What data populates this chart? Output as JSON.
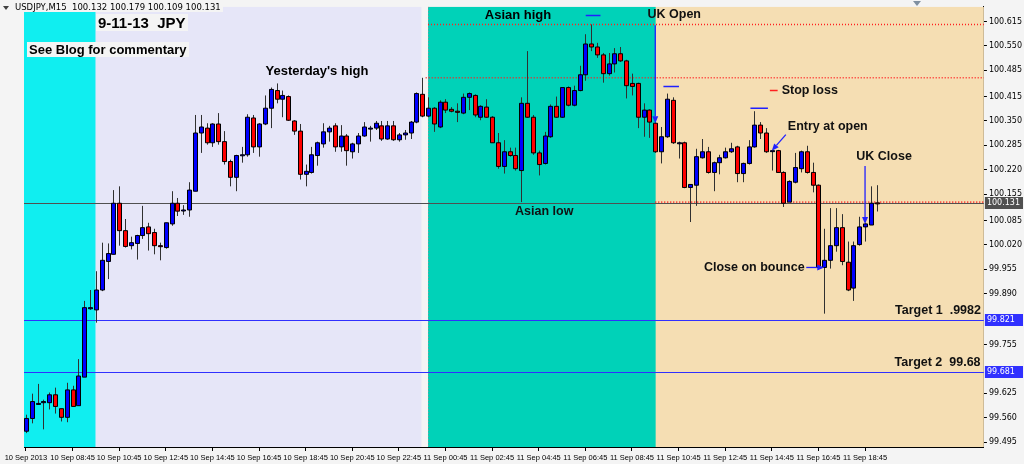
{
  "chart_data": {
    "type": "candlestick",
    "title": "9-11-13  JPY",
    "subtitle": "USDJPY,M15  100.132 100.179 100.109 100.131",
    "x": [
      "2013-09-10T06:45",
      "2013-09-10T07:00",
      "2013-09-10T07:15",
      "2013-09-10T07:30",
      "2013-09-10T07:45",
      "2013-09-10T08:00",
      "2013-09-10T08:15",
      "2013-09-10T08:30",
      "2013-09-10T08:45",
      "2013-09-10T09:00",
      "2013-09-10T09:15",
      "2013-09-10T09:30",
      "2013-09-10T09:45",
      "2013-09-10T10:00",
      "2013-09-10T10:15",
      "2013-09-10T10:30",
      "2013-09-10T10:45",
      "2013-09-10T11:00",
      "2013-09-10T11:15",
      "2013-09-10T11:30",
      "2013-09-10T11:45",
      "2013-09-10T12:00",
      "2013-09-10T12:15",
      "2013-09-10T12:30",
      "2013-09-10T12:45",
      "2013-09-10T13:00",
      "2013-09-10T13:15",
      "2013-09-10T13:30",
      "2013-09-10T13:45",
      "2013-09-10T14:00",
      "2013-09-10T14:15",
      "2013-09-10T14:30",
      "2013-09-10T14:45",
      "2013-09-10T15:00",
      "2013-09-10T15:15",
      "2013-09-10T15:30",
      "2013-09-10T15:45",
      "2013-09-10T16:00",
      "2013-09-10T16:15",
      "2013-09-10T16:30",
      "2013-09-10T16:45",
      "2013-09-10T17:00",
      "2013-09-10T17:15",
      "2013-09-10T17:30",
      "2013-09-10T17:45",
      "2013-09-10T18:00",
      "2013-09-10T18:15",
      "2013-09-10T18:30",
      "2013-09-10T18:45",
      "2013-09-10T19:00",
      "2013-09-10T19:15",
      "2013-09-10T19:30",
      "2013-09-10T19:45",
      "2013-09-10T20:00",
      "2013-09-10T20:15",
      "2013-09-10T20:30",
      "2013-09-10T20:45",
      "2013-09-10T21:00",
      "2013-09-10T21:15",
      "2013-09-10T21:30",
      "2013-09-10T21:45",
      "2013-09-10T22:00",
      "2013-09-10T22:15",
      "2013-09-10T22:30",
      "2013-09-10T22:45",
      "2013-09-10T23:00",
      "2013-09-10T23:15",
      "2013-09-10T23:30",
      "2013-09-10T23:45",
      "2013-09-11T00:00",
      "2013-09-11T00:15",
      "2013-09-11T00:30",
      "2013-09-11T00:45",
      "2013-09-11T01:00",
      "2013-09-11T01:15",
      "2013-09-11T01:30",
      "2013-09-11T01:45",
      "2013-09-11T02:00",
      "2013-09-11T02:15",
      "2013-09-11T02:30",
      "2013-09-11T02:45",
      "2013-09-11T03:00",
      "2013-09-11T03:15",
      "2013-09-11T03:30",
      "2013-09-11T03:45",
      "2013-09-11T04:00",
      "2013-09-11T04:15",
      "2013-09-11T04:30",
      "2013-09-11T04:45",
      "2013-09-11T05:00",
      "2013-09-11T05:15",
      "2013-09-11T05:30",
      "2013-09-11T05:45",
      "2013-09-11T06:00",
      "2013-09-11T06:15",
      "2013-09-11T06:30",
      "2013-09-11T06:45",
      "2013-09-11T07:00",
      "2013-09-11T07:15",
      "2013-09-11T07:30",
      "2013-09-11T07:45",
      "2013-09-11T08:00",
      "2013-09-11T08:15",
      "2013-09-11T08:30",
      "2013-09-11T08:45",
      "2013-09-11T09:00",
      "2013-09-11T09:15",
      "2013-09-11T09:30",
      "2013-09-11T09:45",
      "2013-09-11T10:00",
      "2013-09-11T10:15",
      "2013-09-11T10:30",
      "2013-09-11T10:45",
      "2013-09-11T11:00",
      "2013-09-11T11:15",
      "2013-09-11T11:30",
      "2013-09-11T11:45",
      "2013-09-11T12:00",
      "2013-09-11T12:15",
      "2013-09-11T12:30",
      "2013-09-11T12:45",
      "2013-09-11T13:00",
      "2013-09-11T13:15",
      "2013-09-11T13:30",
      "2013-09-11T13:45",
      "2013-09-11T14:00",
      "2013-09-11T14:15",
      "2013-09-11T14:30",
      "2013-09-11T14:45",
      "2013-09-11T15:00",
      "2013-09-11T15:15",
      "2013-09-11T15:30",
      "2013-09-11T15:45",
      "2013-09-11T16:00",
      "2013-09-11T16:15",
      "2013-09-11T16:30",
      "2013-09-11T16:45",
      "2013-09-11T17:00",
      "2013-09-11T17:15",
      "2013-09-11T17:30",
      "2013-09-11T17:45",
      "2013-09-11T18:00",
      "2013-09-11T18:15",
      "2013-09-11T18:30",
      "2013-09-11T18:45",
      "2013-09-11T19:00",
      "2013-09-11T19:15"
    ],
    "ohlc": [
      [
        99.524,
        99.568,
        99.519,
        99.558
      ],
      [
        99.558,
        99.624,
        99.545,
        99.603
      ],
      [
        99.598,
        99.65,
        99.595,
        99.598
      ],
      [
        99.6,
        99.608,
        99.529,
        99.603
      ],
      [
        99.6,
        99.627,
        99.582,
        99.621
      ],
      [
        99.621,
        99.64,
        99.571,
        99.59
      ],
      [
        99.584,
        99.584,
        99.55,
        99.561
      ],
      [
        99.561,
        99.653,
        99.548,
        99.634
      ],
      [
        99.634,
        99.645,
        99.59,
        99.59
      ],
      [
        99.592,
        99.716,
        99.592,
        99.671
      ],
      [
        99.668,
        99.871,
        99.668,
        99.853
      ],
      [
        99.85,
        99.9,
        99.847,
        99.853
      ],
      [
        99.847,
        99.95,
        99.813,
        99.9
      ],
      [
        99.9,
        100.026,
        99.897,
        99.979
      ],
      [
        99.976,
        100.024,
        99.929,
        99.997
      ],
      [
        99.995,
        100.166,
        99.995,
        100.131
      ],
      [
        100.131,
        100.176,
        100.018,
        100.058
      ],
      [
        100.058,
        100.089,
        100.013,
        100.016
      ],
      [
        100.018,
        100.042,
        100.008,
        100.026
      ],
      [
        100.024,
        100.047,
        99.981,
        100.045
      ],
      [
        100.045,
        100.124,
        100.036,
        100.066
      ],
      [
        100.068,
        100.079,
        100.005,
        100.05
      ],
      [
        100.053,
        100.063,
        99.995,
        100.018
      ],
      [
        100.018,
        100.026,
        99.979,
        100.016
      ],
      [
        100.013,
        100.079,
        100.01,
        100.079
      ],
      [
        100.076,
        100.163,
        100.071,
        100.131
      ],
      [
        100.131,
        100.145,
        100.097,
        100.11
      ],
      [
        100.113,
        100.126,
        100.1,
        100.113
      ],
      [
        100.113,
        100.187,
        100.095,
        100.166
      ],
      [
        100.163,
        100.366,
        100.163,
        100.318
      ],
      [
        100.318,
        100.366,
        100.265,
        100.334
      ],
      [
        100.331,
        100.344,
        100.287,
        100.292
      ],
      [
        100.292,
        100.344,
        100.281,
        100.342
      ],
      [
        100.342,
        100.371,
        100.287,
        100.295
      ],
      [
        100.295,
        100.323,
        100.234,
        100.242
      ],
      [
        100.242,
        100.247,
        100.176,
        100.2
      ],
      [
        100.2,
        100.26,
        100.163,
        100.258
      ],
      [
        100.26,
        100.281,
        100.239,
        100.26
      ],
      [
        100.26,
        100.368,
        100.255,
        100.36
      ],
      [
        100.358,
        100.366,
        100.265,
        100.281
      ],
      [
        100.281,
        100.344,
        100.255,
        100.342
      ],
      [
        100.342,
        100.418,
        100.339,
        100.384
      ],
      [
        100.384,
        100.439,
        100.331,
        100.434
      ],
      [
        100.431,
        100.45,
        100.397,
        100.408
      ],
      [
        100.408,
        100.431,
        100.36,
        100.418
      ],
      [
        100.415,
        100.418,
        100.35,
        100.352
      ],
      [
        100.35,
        100.352,
        100.313,
        100.323
      ],
      [
        100.323,
        100.342,
        100.194,
        100.208
      ],
      [
        100.208,
        100.234,
        100.176,
        100.216
      ],
      [
        100.213,
        100.281,
        100.21,
        100.26
      ],
      [
        100.258,
        100.295,
        100.231,
        100.292
      ],
      [
        100.289,
        100.344,
        100.279,
        100.321
      ],
      [
        100.321,
        100.337,
        100.295,
        100.331
      ],
      [
        100.337,
        100.344,
        100.268,
        100.281
      ],
      [
        100.281,
        100.339,
        100.268,
        100.31
      ],
      [
        100.31,
        100.315,
        100.231,
        100.271
      ],
      [
        100.268,
        100.292,
        100.25,
        100.289
      ],
      [
        100.289,
        100.318,
        100.265,
        100.31
      ],
      [
        100.31,
        100.347,
        100.308,
        100.334
      ],
      [
        100.331,
        100.337,
        100.295,
        100.331
      ],
      [
        100.331,
        100.35,
        100.326,
        100.344
      ],
      [
        100.337,
        100.35,
        100.297,
        100.302
      ],
      [
        100.302,
        100.35,
        100.3,
        100.337
      ],
      [
        100.337,
        100.35,
        100.297,
        100.3
      ],
      [
        100.3,
        100.318,
        100.295,
        100.313
      ],
      [
        100.313,
        100.326,
        100.3,
        100.318
      ],
      [
        100.318,
        100.35,
        100.302,
        100.347
      ],
      [
        100.347,
        100.426,
        100.344,
        100.423
      ],
      [
        100.421,
        100.465,
        100.36,
        100.363
      ],
      [
        100.363,
        100.413,
        100.36,
        100.384
      ],
      [
        100.384,
        100.387,
        100.321,
        100.342
      ],
      [
        100.334,
        100.405,
        100.331,
        100.4
      ],
      [
        100.4,
        100.408,
        100.371,
        100.379
      ],
      [
        100.381,
        100.387,
        100.373,
        100.376
      ],
      [
        100.376,
        100.397,
        100.347,
        100.373
      ],
      [
        100.371,
        100.423,
        100.368,
        100.413
      ],
      [
        100.413,
        100.426,
        100.379,
        100.423
      ],
      [
        100.418,
        100.421,
        100.36,
        100.366
      ],
      [
        100.36,
        100.392,
        100.352,
        100.389
      ],
      [
        100.387,
        100.408,
        100.358,
        100.36
      ],
      [
        100.36,
        100.363,
        100.292,
        100.292
      ],
      [
        100.292,
        100.318,
        100.223,
        100.229
      ],
      [
        100.229,
        100.299,
        100.21,
        100.268
      ],
      [
        100.268,
        100.279,
        100.255,
        100.258
      ],
      [
        100.258,
        100.279,
        100.218,
        100.223
      ],
      [
        100.218,
        100.413,
        100.134,
        100.397
      ],
      [
        100.397,
        100.536,
        100.358,
        100.36
      ],
      [
        100.36,
        100.366,
        100.26,
        100.265
      ],
      [
        100.265,
        100.271,
        100.205,
        100.234
      ],
      [
        100.237,
        100.321,
        100.234,
        100.31
      ],
      [
        100.308,
        100.394,
        100.305,
        100.389
      ],
      [
        100.389,
        100.415,
        100.358,
        100.36
      ],
      [
        100.36,
        100.439,
        100.358,
        100.439
      ],
      [
        100.439,
        100.442,
        100.389,
        100.392
      ],
      [
        100.392,
        100.444,
        100.389,
        100.431
      ],
      [
        100.431,
        100.497,
        100.429,
        100.473
      ],
      [
        100.473,
        100.581,
        100.457,
        100.555
      ],
      [
        100.555,
        100.607,
        100.536,
        100.547
      ],
      [
        100.547,
        100.558,
        100.518,
        100.526
      ],
      [
        100.526,
        100.531,
        100.452,
        100.476
      ],
      [
        100.476,
        100.531,
        100.471,
        100.502
      ],
      [
        100.502,
        100.544,
        100.479,
        100.529
      ],
      [
        100.529,
        100.547,
        100.507,
        100.51
      ],
      [
        100.51,
        100.513,
        100.41,
        100.444
      ],
      [
        100.45,
        100.476,
        100.418,
        100.442
      ],
      [
        100.45,
        100.452,
        100.331,
        100.36
      ],
      [
        100.36,
        100.397,
        100.308,
        100.379
      ],
      [
        100.379,
        100.381,
        100.305,
        100.347
      ],
      [
        100.344,
        100.347,
        100.265,
        100.268
      ],
      [
        100.268,
        100.334,
        100.237,
        100.308
      ],
      [
        100.308,
        100.423,
        100.305,
        100.408
      ],
      [
        100.405,
        100.413,
        100.289,
        100.292
      ],
      [
        100.292,
        100.295,
        100.25,
        100.292
      ],
      [
        100.292,
        100.295,
        100.171,
        100.173
      ],
      [
        100.173,
        100.181,
        100.081,
        100.181
      ],
      [
        100.179,
        100.276,
        100.124,
        100.255
      ],
      [
        100.252,
        100.302,
        100.25,
        100.268
      ],
      [
        100.268,
        100.281,
        100.21,
        100.213
      ],
      [
        100.213,
        100.242,
        100.163,
        100.239
      ],
      [
        100.239,
        100.26,
        100.208,
        100.252
      ],
      [
        100.252,
        100.279,
        100.25,
        100.268
      ],
      [
        100.268,
        100.292,
        100.265,
        100.276
      ],
      [
        100.281,
        100.284,
        100.187,
        100.21
      ],
      [
        100.21,
        100.239,
        100.187,
        100.237
      ],
      [
        100.237,
        100.299,
        100.234,
        100.281
      ],
      [
        100.281,
        100.376,
        100.279,
        100.339
      ],
      [
        100.339,
        100.347,
        100.302,
        100.318
      ],
      [
        100.318,
        100.331,
        100.265,
        100.268
      ],
      [
        100.271,
        100.273,
        100.218,
        100.271
      ],
      [
        100.271,
        100.273,
        100.213,
        100.213
      ],
      [
        100.213,
        100.216,
        100.121,
        100.131
      ],
      [
        100.134,
        100.192,
        100.134,
        100.189
      ],
      [
        100.187,
        100.265,
        100.184,
        100.226
      ],
      [
        100.223,
        100.271,
        100.213,
        100.268
      ],
      [
        100.268,
        100.284,
        100.21,
        100.213
      ],
      [
        100.213,
        100.239,
        100.16,
        100.179
      ],
      [
        100.179,
        100.181,
        99.957,
        99.96
      ],
      [
        99.96,
        100.063,
        99.837,
        99.979
      ],
      [
        99.979,
        100.118,
        99.957,
        100.018
      ],
      [
        100.018,
        100.118,
        100.002,
        100.066
      ],
      [
        100.066,
        100.102,
        99.966,
        99.976
      ],
      [
        99.974,
        100.029,
        99.897,
        99.9
      ],
      [
        99.905,
        100.029,
        99.871,
        100.018
      ],
      [
        100.021,
        100.095,
        100.018,
        100.068
      ],
      [
        100.068,
        100.079,
        100.029,
        100.076
      ],
      [
        100.073,
        100.176,
        100.073,
        100.131
      ],
      [
        100.132,
        100.179,
        100.109,
        100.131
      ]
    ],
    "colors": [
      "#0000ff",
      "#0000ff",
      "#0000ff",
      "#0000ff",
      "#0000ff",
      "#ff0000",
      "#ff0000",
      "#0000ff",
      "#ff0000",
      "#0000ff",
      "#0000ff",
      "#0000ff",
      "#0000ff",
      "#0000ff",
      "#0000ff",
      "#0000ff",
      "#ff0000",
      "#ff0000",
      "#0000ff",
      "#0000ff",
      "#0000ff",
      "#ff0000",
      "#ff0000",
      "#ff0000",
      "#0000ff",
      "#0000ff",
      "#ff0000",
      "#0000ff",
      "#0000ff",
      "#0000ff",
      "#0000ff",
      "#ff0000",
      "#0000ff",
      "#ff0000",
      "#ff0000",
      "#ff0000",
      "#0000ff",
      "#0000ff",
      "#0000ff",
      "#ff0000",
      "#0000ff",
      "#0000ff",
      "#0000ff",
      "#ff0000",
      "#0000ff",
      "#ff0000",
      "#ff0000",
      "#ff0000",
      "#0000ff",
      "#0000ff",
      "#0000ff",
      "#0000ff",
      "#0000ff",
      "#ff0000",
      "#0000ff",
      "#ff0000",
      "#0000ff",
      "#0000ff",
      "#0000ff",
      "#0000ff",
      "#0000ff",
      "#ff0000",
      "#0000ff",
      "#ff0000",
      "#0000ff",
      "#0000ff",
      "#0000ff",
      "#0000ff",
      "#ff0000",
      "#0000ff",
      "#ff0000",
      "#0000ff",
      "#ff0000",
      "#ff0000",
      "#ff0000",
      "#0000ff",
      "#0000ff",
      "#ff0000",
      "#0000ff",
      "#ff0000",
      "#ff0000",
      "#ff0000",
      "#0000ff",
      "#ff0000",
      "#ff0000",
      "#0000ff",
      "#ff0000",
      "#ff0000",
      "#ff0000",
      "#0000ff",
      "#0000ff",
      "#ff0000",
      "#0000ff",
      "#ff0000",
      "#0000ff",
      "#0000ff",
      "#0000ff",
      "#ff0000",
      "#ff0000",
      "#ff0000",
      "#0000ff",
      "#0000ff",
      "#ff0000",
      "#ff0000",
      "#ff0000",
      "#ff0000",
      "#0000ff",
      "#ff0000",
      "#ff0000",
      "#0000ff",
      "#0000ff",
      "#ff0000",
      "#0000ff",
      "#ff0000",
      "#0000ff",
      "#0000ff",
      "#0000ff",
      "#ff0000",
      "#0000ff",
      "#0000ff",
      "#0000ff",
      "#0000ff",
      "#ff0000",
      "#0000ff",
      "#0000ff",
      "#0000ff",
      "#ff0000",
      "#ff0000",
      "#0000ff",
      "#ff0000",
      "#ff0000",
      "#0000ff",
      "#0000ff",
      "#0000ff",
      "#ff0000",
      "#ff0000",
      "#ff0000",
      "#0000ff",
      "#0000ff",
      "#0000ff",
      "#ff0000",
      "#ff0000",
      "#0000ff",
      "#0000ff",
      "#0000ff",
      "#0000ff",
      "#ff0000"
    ],
    "series": [
      {
        "type": "line",
        "x": [
          "2013-09-10T23:54",
          "2013-09-11T23:51"
        ],
        "values": [
          100.465,
          100.465
        ],
        "color": "#ff2020",
        "line_style": "dotted"
      },
      {
        "type": "line",
        "x": [
          "2013-09-11T00:00",
          "2013-09-11T23:51"
        ],
        "values": [
          100.607,
          100.607
        ],
        "color": "#ff2020",
        "line_style": "dotted"
      },
      {
        "type": "line",
        "x": [
          "2013-09-11T09:45",
          "2013-09-11T23:51"
        ],
        "values": [
          100.134,
          100.134
        ],
        "color": "#ff2020",
        "line_style": "dotted"
      },
      {
        "type": "line",
        "x": [
          "2013-09-11T06:46",
          "2013-09-11T07:24"
        ],
        "values": [
          100.631,
          100.631
        ],
        "color": "#2020ff"
      },
      {
        "type": "line",
        "x": [
          "2013-09-11T10:06",
          "2013-09-11T10:46"
        ],
        "values": [
          100.442,
          100.442
        ],
        "color": "#2020ff"
      },
      {
        "type": "line",
        "x": [
          "2013-09-11T13:50",
          "2013-09-11T14:35"
        ],
        "values": [
          100.384,
          100.384
        ],
        "color": "#2020ff"
      },
      {
        "type": "line",
        "x": [
          "2013-09-11T14:40",
          "2013-09-11T15:00"
        ],
        "values": [
          100.431,
          100.431
        ],
        "color": "#ff2020"
      }
    ],
    "xlim": [
      "2013-09-10T06:40",
      "2013-09-11T23:51"
    ],
    "xticks": [
      {
        "value": "2013-09-10T06:45",
        "label": "10 Sep 2013"
      },
      {
        "value": "2013-09-10T08:45",
        "label": "10 Sep 08:45"
      },
      {
        "value": "2013-09-10T10:45",
        "label": "10 Sep 10:45"
      },
      {
        "value": "2013-09-10T12:45",
        "label": "10 Sep 12:45"
      },
      {
        "value": "2013-09-10T14:45",
        "label": "10 Sep 14:45"
      },
      {
        "value": "2013-09-10T16:45",
        "label": "10 Sep 16:45"
      },
      {
        "value": "2013-09-10T18:45",
        "label": "10 Sep 18:45"
      },
      {
        "value": "2013-09-10T20:45",
        "label": "10 Sep 20:45"
      },
      {
        "value": "2013-09-10T22:45",
        "label": "10 Sep 22:45"
      },
      {
        "value": "2013-09-11T00:45",
        "label": "11 Sep 00:45"
      },
      {
        "value": "2013-09-11T02:45",
        "label": "11 Sep 02:45"
      },
      {
        "value": "2013-09-11T04:45",
        "label": "11 Sep 04:45"
      },
      {
        "value": "2013-09-11T06:45",
        "label": "11 Sep 06:45"
      },
      {
        "value": "2013-09-11T08:45",
        "label": "11 Sep 08:45"
      },
      {
        "value": "2013-09-11T10:45",
        "label": "11 Sep 10:45"
      },
      {
        "value": "2013-09-11T12:45",
        "label": "11 Sep 12:45"
      },
      {
        "value": "2013-09-11T14:45",
        "label": "11 Sep 14:45"
      },
      {
        "value": "2013-09-11T16:45",
        "label": "11 Sep 16:45"
      },
      {
        "value": "2013-09-11T18:45",
        "label": "11 Sep 18:45"
      }
    ],
    "ylim": [
      99.482,
      100.654
    ],
    "yticks": [
      100.615,
      {
        "value": 100.55,
        "label": "100.550"
      },
      100.485,
      100.415,
      {
        "value": 100.35,
        "label": "100.350"
      },
      100.285,
      {
        "value": 100.22,
        "label": "100.220"
      },
      100.155,
      100.085,
      {
        "value": 100.02,
        "label": "100.020"
      },
      99.955,
      {
        "value": 99.89,
        "label": "99.890"
      },
      99.755,
      99.625,
      {
        "value": 99.56,
        "label": "99.560"
      },
      99.495
    ],
    "bands": [
      {
        "axis": "x",
        "from": "2013-09-10T06:40",
        "to": "2013-09-10T23:43",
        "color": "#e6e6f8"
      },
      {
        "axis": "x",
        "from": "2013-09-10T06:40",
        "to": "2013-09-10T09:44",
        "color": "#10eef0"
      },
      {
        "axis": "x",
        "from": "2013-09-11T00:00",
        "to": "2013-09-11T23:51",
        "color": "#f5deb3"
      },
      {
        "axis": "x",
        "from": "2013-09-11T00:00",
        "to": "2013-09-11T09:46",
        "color": "#00d2b8"
      }
    ],
    "ref_lines": [
      {
        "axis": "x",
        "value": "2013-09-11T00:00",
        "color": "#909090",
        "line_style": "dotted"
      },
      {
        "axis": "y",
        "value": 100.131,
        "label": "100.131",
        "color": "#505050"
      },
      {
        "axis": "y",
        "value": 99.821,
        "label": "99.821",
        "color": "#3030ff"
      },
      {
        "axis": "y",
        "value": 99.681,
        "label": "99.681",
        "color": "#3030ff"
      }
    ],
    "annotations": [
      "See Blog for commentary",
      "Yesterday's high",
      "Asian high",
      {
        "text": "UK Open",
        "x": "2013-09-11T09:45",
        "y": 100.344
      },
      {
        "text": "Stop loss",
        "x": "2013-09-11T14:50",
        "y": 100.431
      },
      {
        "text": "Entry at open",
        "x": "2013-09-11T14:45",
        "y": 100.271
      },
      {
        "text": "Asian low",
        "x": "2013-09-11T04:00",
        "y": 100.134
      },
      {
        "text": "UK Close",
        "x": "2013-09-11T18:45",
        "y": 100.076
      },
      {
        "text": "Close on bounce",
        "x": "2013-09-11T17:00",
        "y": 99.96
      },
      {
        "text": "Target 1  .9982",
        "x": "2013-09-11T21:58",
        "y": 99.821
      },
      {
        "text": "Target 2  99.68",
        "x": "2013-09-11T22:02",
        "y": 99.681
      }
    ]
  }
}
